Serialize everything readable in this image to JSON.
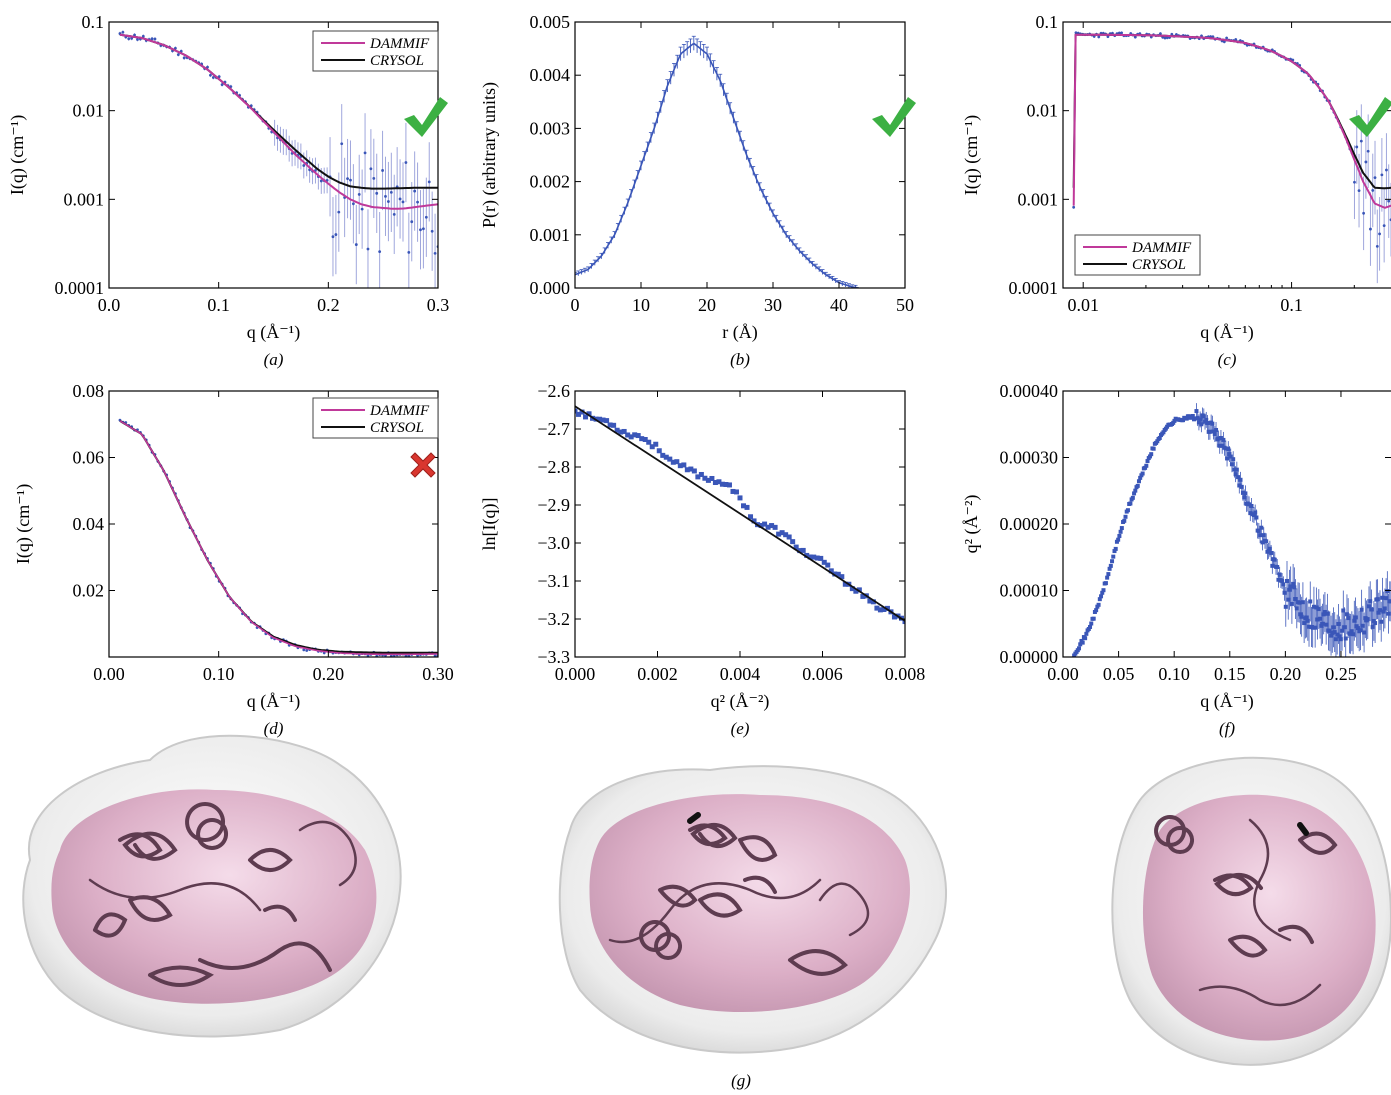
{
  "colors": {
    "dammif": "#c0399a",
    "crysol": "#111111",
    "data": "#3a56b8",
    "errbar": "#9fa6dc",
    "check": "#3cb043",
    "cross": "#d9362f"
  },
  "panels": {
    "a": {
      "label": "(a)",
      "xlabel": "q (Å⁻¹)",
      "ylabel": "I(q) (cm⁻¹)",
      "legend": [
        "DAMMIF",
        "CRYSOL"
      ],
      "mark": "check",
      "xticks": [
        "0.0",
        "0.1",
        "0.2",
        "0.3"
      ],
      "yticks": [
        "0.0001",
        "0.001",
        "0.01",
        "0.1"
      ]
    },
    "b": {
      "label": "(b)",
      "xlabel": "r (Å)",
      "ylabel": "P(r) (arbitrary units)",
      "mark": "check",
      "xticks": [
        "0",
        "10",
        "20",
        "30",
        "40",
        "50"
      ],
      "yticks": [
        "0.000",
        "0.001",
        "0.002",
        "0.003",
        "0.004",
        "0.005"
      ]
    },
    "c": {
      "label": "(c)",
      "xlabel": "q (Å⁻¹)",
      "ylabel": "I(q) (cm⁻¹)",
      "legend": [
        "DAMMIF",
        "CRYSOL"
      ],
      "mark": "check",
      "xticks": [
        "0.01",
        "0.1"
      ],
      "yticks": [
        "0.0001",
        "0.001",
        "0.01",
        "0.1"
      ]
    },
    "d": {
      "label": "(d)",
      "xlabel": "q (Å⁻¹)",
      "ylabel": "I(q) (cm⁻¹)",
      "legend": [
        "DAMMIF",
        "CRYSOL"
      ],
      "mark": "cross",
      "xticks": [
        "0.00",
        "0.10",
        "0.20",
        "0.30"
      ],
      "yticks": [
        "0.02",
        "0.04",
        "0.06",
        "0.08"
      ]
    },
    "e": {
      "label": "(e)",
      "xlabel": "q² (Å⁻²)",
      "ylabel": "ln[I(q)]",
      "xticks": [
        "0.000",
        "0.002",
        "0.004",
        "0.006",
        "0.008"
      ],
      "yticks": [
        "−3.3",
        "−3.2",
        "−3.1",
        "−3.0",
        "−2.9",
        "−2.8",
        "−2.7",
        "−2.6"
      ]
    },
    "f": {
      "label": "(f)",
      "xlabel": "q (Å⁻¹)",
      "ylabel": "q² (Å⁻²)",
      "xticks": [
        "0.00",
        "0.05",
        "0.10",
        "0.15",
        "0.20",
        "0.25"
      ],
      "yticks": [
        "0.00000",
        "0.00010",
        "0.00020",
        "0.00030",
        "0.00040"
      ]
    },
    "g": {
      "label": "(g)"
    }
  },
  "chart_data": [
    {
      "id": "a",
      "type": "line",
      "xscale": "linear",
      "yscale": "log",
      "xlim": [
        0,
        0.3
      ],
      "ylim": [
        0.0001,
        0.1
      ],
      "series": [
        {
          "name": "DAMMIF",
          "x": [
            0.01,
            0.03,
            0.05,
            0.07,
            0.09,
            0.11,
            0.13,
            0.15,
            0.17,
            0.19,
            0.2,
            0.21,
            0.22,
            0.23,
            0.24,
            0.25,
            0.26,
            0.27,
            0.28,
            0.29,
            0.3
          ],
          "y": [
            0.072,
            0.066,
            0.055,
            0.042,
            0.029,
            0.018,
            0.0105,
            0.0058,
            0.0032,
            0.0019,
            0.0015,
            0.0012,
            0.001,
            0.00088,
            0.00082,
            0.0008,
            0.00078,
            0.00079,
            0.00082,
            0.00085,
            0.00088
          ]
        },
        {
          "name": "CRYSOL",
          "x": [
            0.01,
            0.03,
            0.05,
            0.07,
            0.09,
            0.11,
            0.13,
            0.15,
            0.17,
            0.19,
            0.2,
            0.21,
            0.22,
            0.23,
            0.24,
            0.25,
            0.26,
            0.27,
            0.28,
            0.29,
            0.3
          ],
          "y": [
            0.072,
            0.066,
            0.055,
            0.042,
            0.029,
            0.018,
            0.0106,
            0.0061,
            0.0036,
            0.0022,
            0.0018,
            0.00155,
            0.0014,
            0.00135,
            0.00132,
            0.00132,
            0.00133,
            0.00134,
            0.00135,
            0.00135,
            0.00135
          ]
        }
      ]
    },
    {
      "id": "b",
      "type": "line",
      "xlim": [
        0,
        50
      ],
      "ylim": [
        0,
        0.005
      ],
      "series": [
        {
          "x": [
            0,
            2,
            4,
            6,
            8,
            10,
            12,
            14,
            16,
            18,
            20,
            22,
            24,
            26,
            28,
            30,
            32,
            34,
            36,
            38,
            40,
            42,
            43
          ],
          "y": [
            0.00025,
            0.00035,
            0.0006,
            0.001,
            0.0016,
            0.0023,
            0.003,
            0.0038,
            0.0044,
            0.0046,
            0.0044,
            0.0039,
            0.0032,
            0.0025,
            0.0019,
            0.0014,
            0.001,
            0.0007,
            0.00045,
            0.00025,
            0.0001,
            2e-05,
            0
          ]
        }
      ]
    },
    {
      "id": "c",
      "type": "line",
      "xscale": "log",
      "yscale": "log",
      "xlim": [
        0.008,
        0.3
      ],
      "ylim": [
        0.0001,
        0.1
      ],
      "series": [
        {
          "name": "DAMMIF",
          "x": [
            0.009,
            0.02,
            0.04,
            0.06,
            0.08,
            0.1,
            0.12,
            0.15,
            0.18,
            0.2,
            0.22,
            0.25,
            0.28,
            0.3
          ],
          "y": [
            0.072,
            0.071,
            0.066,
            0.058,
            0.047,
            0.036,
            0.026,
            0.013,
            0.0052,
            0.0028,
            0.0016,
            0.0009,
            0.0008,
            0.00085
          ]
        },
        {
          "name": "CRYSOL",
          "x": [
            0.009,
            0.02,
            0.04,
            0.06,
            0.08,
            0.1,
            0.12,
            0.15,
            0.18,
            0.2,
            0.22,
            0.25,
            0.28,
            0.3
          ],
          "y": [
            0.072,
            0.071,
            0.066,
            0.058,
            0.047,
            0.036,
            0.026,
            0.013,
            0.0055,
            0.0032,
            0.002,
            0.00135,
            0.00133,
            0.00135
          ]
        }
      ]
    },
    {
      "id": "d",
      "type": "line",
      "xlim": [
        0,
        0.3
      ],
      "ylim": [
        0,
        0.08
      ],
      "series": [
        {
          "name": "DAMMIF",
          "x": [
            0.01,
            0.03,
            0.05,
            0.07,
            0.09,
            0.11,
            0.13,
            0.15,
            0.17,
            0.19,
            0.21,
            0.23,
            0.25,
            0.27,
            0.3
          ],
          "y": [
            0.071,
            0.067,
            0.056,
            0.042,
            0.029,
            0.018,
            0.0105,
            0.0058,
            0.0032,
            0.0019,
            0.0012,
            0.0009,
            0.0008,
            0.0008,
            0.0009
          ]
        },
        {
          "name": "CRYSOL",
          "x": [
            0.01,
            0.03,
            0.05,
            0.07,
            0.09,
            0.11,
            0.13,
            0.15,
            0.17,
            0.19,
            0.21,
            0.23,
            0.25,
            0.27,
            0.3
          ],
          "y": [
            0.071,
            0.067,
            0.056,
            0.042,
            0.029,
            0.018,
            0.0106,
            0.0061,
            0.0036,
            0.0022,
            0.0016,
            0.0014,
            0.0013,
            0.0013,
            0.0013
          ]
        }
      ]
    },
    {
      "id": "e",
      "type": "scatter",
      "xlim": [
        0,
        0.008
      ],
      "ylim": [
        -3.3,
        -2.6
      ],
      "series": [
        {
          "x": [
            0.0,
            0.0004,
            0.0008,
            0.0012,
            0.0016,
            0.002,
            0.0024,
            0.0028,
            0.0032,
            0.0036,
            0.004,
            0.0044,
            0.0048,
            0.0052,
            0.0056,
            0.006,
            0.0064,
            0.0068,
            0.0072,
            0.0076,
            0.008
          ],
          "y": [
            -2.65,
            -2.67,
            -2.68,
            -2.71,
            -2.72,
            -2.75,
            -2.79,
            -2.81,
            -2.83,
            -2.84,
            -2.88,
            -2.95,
            -2.96,
            -2.99,
            -3.03,
            -3.05,
            -3.09,
            -3.12,
            -3.16,
            -3.18,
            -3.21
          ]
        },
        {
          "x": [
            0.0,
            0.008
          ],
          "y": [
            -2.64,
            -3.205
          ]
        }
      ]
    },
    {
      "id": "f",
      "type": "scatter",
      "xlim": [
        0,
        0.295
      ],
      "ylim": [
        0,
        0.0004
      ],
      "series": [
        {
          "x": [
            0.01,
            0.02,
            0.03,
            0.04,
            0.05,
            0.06,
            0.07,
            0.08,
            0.09,
            0.1,
            0.11,
            0.12,
            0.13,
            0.14,
            0.15,
            0.16,
            0.17,
            0.18,
            0.19,
            0.2,
            0.21,
            0.22,
            0.23,
            0.24,
            0.25,
            0.26,
            0.27,
            0.28,
            0.29
          ],
          "y": [
            5e-06,
            3e-05,
            7e-05,
            0.00012,
            0.00018,
            0.00023,
            0.00027,
            0.00031,
            0.00034,
            0.000355,
            0.00036,
            0.00036,
            0.00035,
            0.00033,
            0.0003,
            0.00026,
            0.00022,
            0.00018,
            0.00014,
            0.0001,
            8e-05,
            7e-05,
            6e-05,
            5e-05,
            5e-05,
            5e-05,
            6e-05,
            7e-05,
            8e-05
          ]
        }
      ]
    }
  ]
}
